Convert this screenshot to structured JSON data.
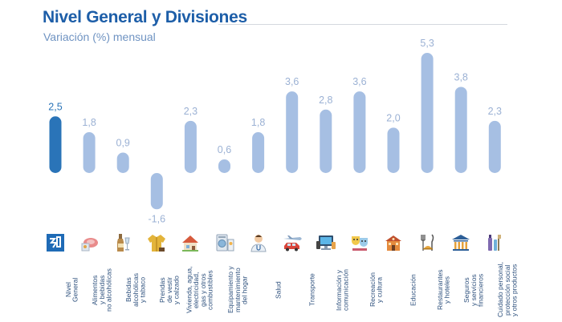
{
  "header": {
    "title": "Nivel General y Divisiones",
    "subtitle": "Variación (%) mensual"
  },
  "colors": {
    "title": "#1d5ea8",
    "highlight_bar": "#2a74b8",
    "bar": "#a6bfe3",
    "value_label": "#9bb1d4",
    "highlight_label": "#2a74b8"
  },
  "chart_data": {
    "type": "bar",
    "title": "Nivel General y Divisiones",
    "subtitle": "Variación (%) mensual",
    "xlabel": "",
    "ylabel": "",
    "grid": false,
    "legend": "none",
    "categories": [
      "Nivel\nGeneral",
      "Alimentos\ny bebidas\nno alcohólicas",
      "Bebidas\nalcohólicas\ny tabaco",
      "Prendas\nde vestir\ny calzado",
      "Vivienda, agua,\nelectricidad,\ngas y otros\ncombustibles",
      "Equipamiento y\nmantenimiento\ndel hogar",
      "Salud",
      "Transporte",
      "Información y\ncomunicación",
      "Recreación\ny cultura",
      "Educación",
      "Restaurantes\ny hoteles",
      "Seguros\ny servicios\nfinancieros",
      "Cuidado personal,\nprotección social\ny otros productos"
    ],
    "values": [
      2.5,
      1.8,
      0.9,
      -1.6,
      2.3,
      0.6,
      1.8,
      3.6,
      2.8,
      3.6,
      2.0,
      5.3,
      3.8,
      2.3
    ],
    "value_labels": [
      "2,5",
      "1,8",
      "0,9",
      "-1,6",
      "2,3",
      "0,6",
      "1,8",
      "3,6",
      "2,8",
      "3,6",
      "2,0",
      "5,3",
      "3,8",
      "2,3"
    ],
    "icons": [
      "ipc-logo-icon",
      "food-icon",
      "bottle-icon",
      "jacket-icon",
      "house-icon",
      "washing-machine-icon",
      "doctor-icon",
      "airplane-car-icon",
      "computer-icon",
      "theater-masks-icon",
      "school-icon",
      "cutlery-icon",
      "bank-icon",
      "personal-care-icon"
    ]
  }
}
